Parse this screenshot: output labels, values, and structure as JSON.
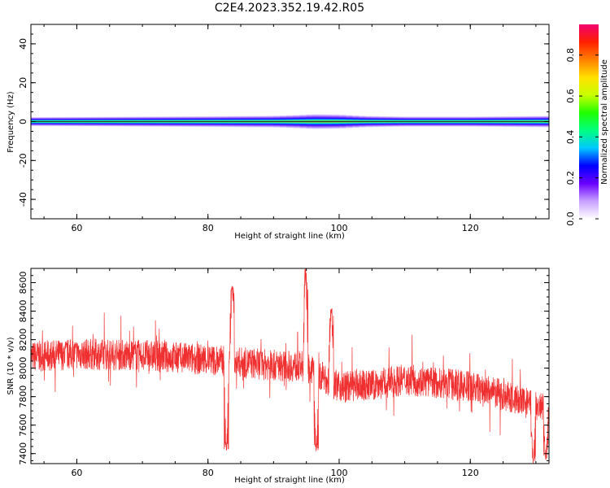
{
  "title": "C2E4.2023.352.19.42.R05",
  "chart_data": [
    {
      "type": "heatmap",
      "xlabel": "Height of straight line (km)",
      "ylabel": "Frequency (Hz)",
      "xlim": [
        53,
        132
      ],
      "ylim": [
        -50,
        50
      ],
      "xticks": [
        60,
        80,
        100,
        120
      ],
      "yticks": [
        -40,
        -20,
        0,
        20,
        40
      ],
      "xtick_labels": [
        "60",
        "80",
        "100",
        "120"
      ],
      "ytick_labels": [
        "-40",
        "-20",
        "0",
        "20",
        "40"
      ],
      "colorbar": {
        "label": "Normalized spectral amplitude",
        "range": [
          0,
          0.95
        ],
        "ticks": [
          0.0,
          0.2,
          0.4,
          0.6,
          0.8
        ],
        "tick_labels": [
          "0.0",
          "0.2",
          "0.4",
          "0.6",
          "0.8"
        ],
        "colormap": [
          "#ffffff",
          "#c8a0ff",
          "#6a00ff",
          "#0000ff",
          "#00c8ff",
          "#00ff80",
          "#20ff00",
          "#c8ff00",
          "#ffe000",
          "#ff8000",
          "#ff2000",
          "#f0006e"
        ]
      },
      "band_envelope": {
        "x": [
          53,
          60,
          70,
          80,
          90,
          94,
          96,
          100,
          104,
          110,
          120,
          132
        ],
        "half_width_hz": [
          2.5,
          2.6,
          2.8,
          3.0,
          3.3,
          3.8,
          4.2,
          4.0,
          3.2,
          2.8,
          2.8,
          3.2
        ]
      }
    },
    {
      "type": "line",
      "xlabel": "Height of straight line (km)",
      "ylabel": "SNR (10 * v/v)",
      "xlim": [
        53,
        132
      ],
      "ylim": [
        7330,
        8700
      ],
      "xticks": [
        60,
        80,
        100,
        120
      ],
      "yticks": [
        7400,
        7600,
        7800,
        8000,
        8200,
        8400,
        8600
      ],
      "xtick_labels": [
        "60",
        "80",
        "100",
        "120"
      ],
      "ytick_labels": [
        "7400",
        "7600",
        "7800",
        "8000",
        "8200",
        "8400",
        "8600"
      ],
      "series": [
        {
          "color": "#f03030",
          "trend_x": [
            53,
            60,
            70,
            80,
            90,
            95,
            100,
            105,
            110,
            120,
            125,
            132
          ],
          "trend_y": [
            8080,
            8100,
            8090,
            8060,
            8020,
            8010,
            7870,
            7880,
            7920,
            7870,
            7810,
            7700
          ],
          "spread": 110,
          "spikes": [
            {
              "x": 82.8,
              "y": 7420
            },
            {
              "x": 83.7,
              "y": 8590
            },
            {
              "x": 94.9,
              "y": 8700
            },
            {
              "x": 96.5,
              "y": 7410
            },
            {
              "x": 98.8,
              "y": 8420
            },
            {
              "x": 129.6,
              "y": 7330
            },
            {
              "x": 131.5,
              "y": 7350
            }
          ]
        }
      ]
    }
  ]
}
